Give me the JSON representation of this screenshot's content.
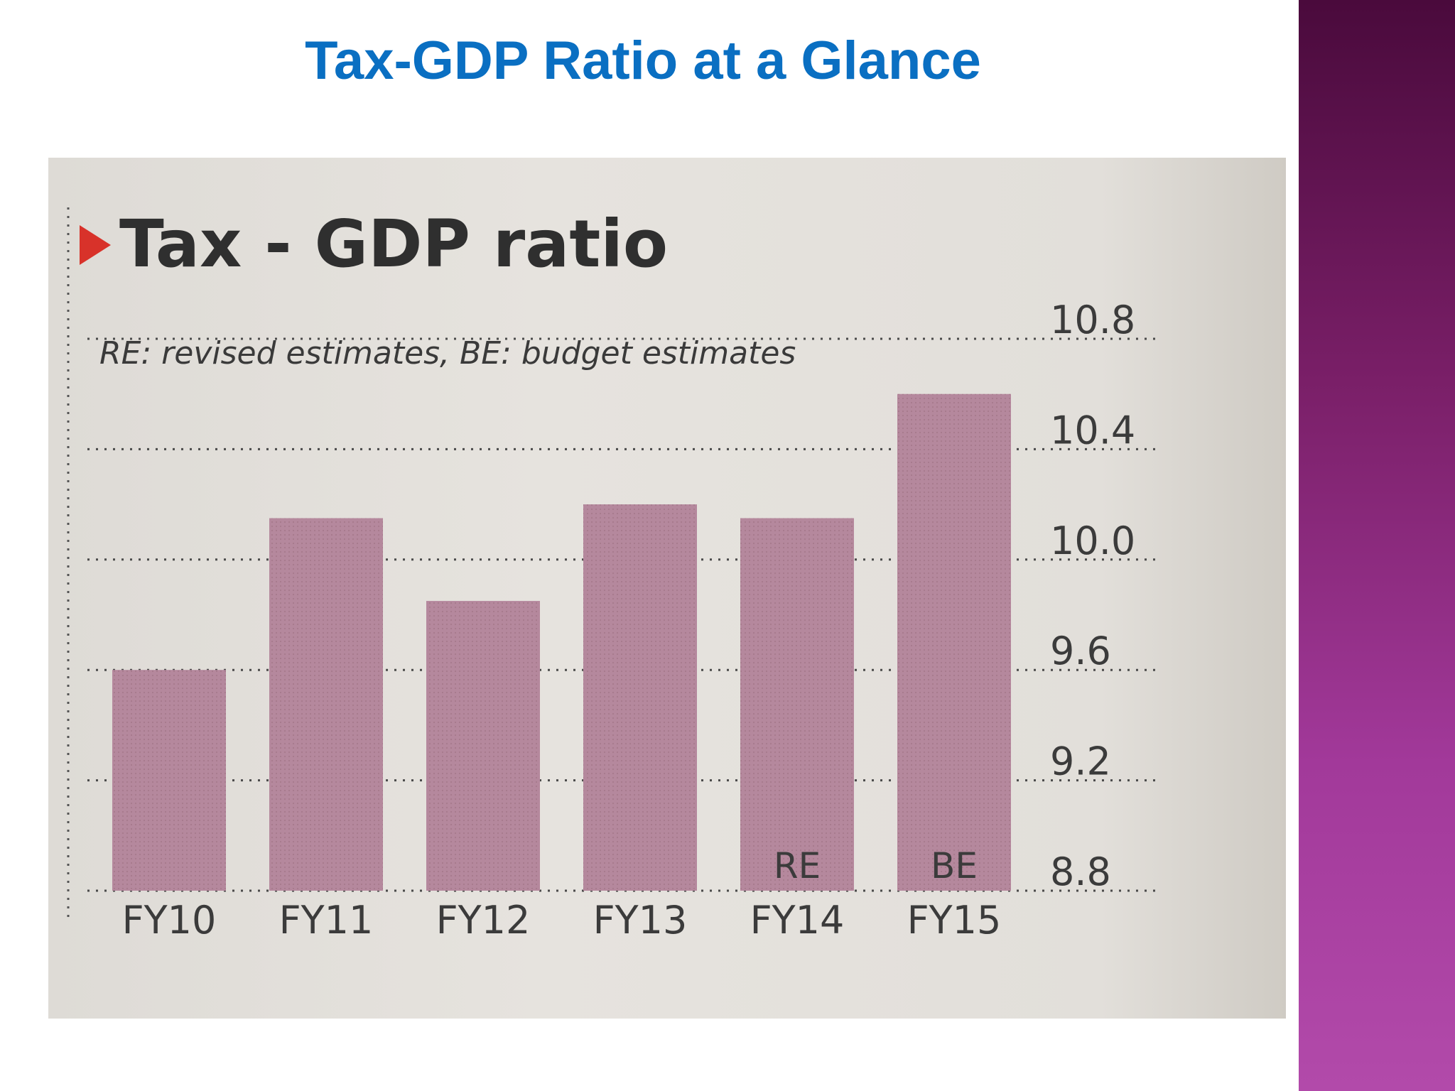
{
  "slide": {
    "title": "Tax-GDP Ratio at a Glance",
    "title_color": "#0a6fc2",
    "accent_band_color": "#8a2a7c"
  },
  "chart_data": {
    "type": "bar",
    "title": "Tax - GDP ratio",
    "subtitle": "RE: revised estimates, BE: budget estimates",
    "categories": [
      "FY10",
      "FY11",
      "FY12",
      "FY13",
      "FY14",
      "FY15"
    ],
    "values": [
      9.6,
      10.15,
      9.85,
      10.2,
      10.15,
      10.6
    ],
    "bar_notes": [
      "",
      "",
      "",
      "",
      "RE",
      "BE"
    ],
    "yticks": [
      "10.8",
      "10.4",
      "10.0",
      "9.6",
      "9.2",
      "8.8"
    ],
    "ylim": [
      8.8,
      10.8
    ],
    "grid": true,
    "y_axis_side": "right",
    "bar_color": "#b5889d",
    "marker_color": "#d8322a"
  }
}
